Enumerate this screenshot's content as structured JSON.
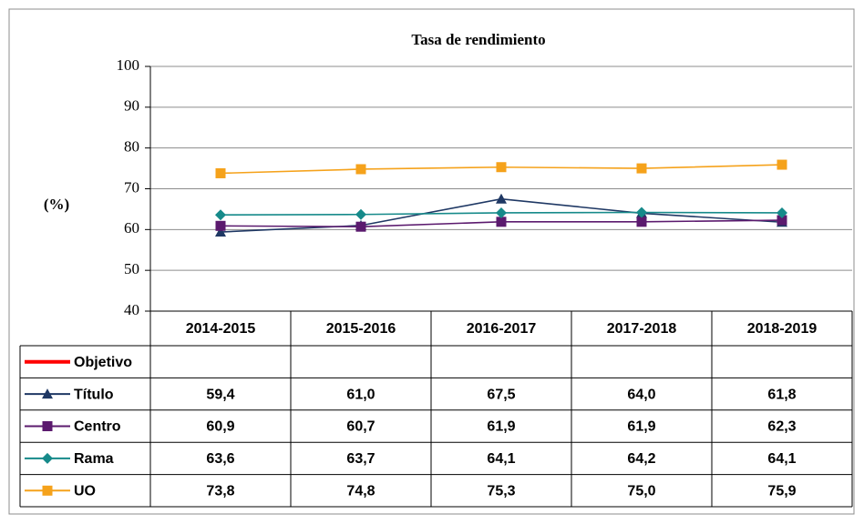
{
  "chart_data": {
    "type": "line",
    "title": "Tasa de rendimiento",
    "y_label": "(%)",
    "categories": [
      "2014-2015",
      "2015-2016",
      "2016-2017",
      "2017-2018",
      "2018-2019"
    ],
    "ylim": [
      40,
      100
    ],
    "yticks": [
      40,
      50,
      60,
      70,
      80,
      90,
      100
    ],
    "grid": true,
    "series": [
      {
        "name": "Objetivo",
        "color": "#ff0000",
        "marker": "none",
        "values": [
          null,
          null,
          null,
          null,
          null
        ]
      },
      {
        "name": "Título",
        "color": "#1f3864",
        "marker": "triangle",
        "values": [
          59.4,
          61.0,
          67.5,
          64.0,
          61.8
        ],
        "value_labels": [
          "59,4",
          "61,0",
          "67,5",
          "64,0",
          "61,8"
        ]
      },
      {
        "name": "Centro",
        "color": "#5b1a6e",
        "marker": "square",
        "values": [
          60.9,
          60.7,
          61.9,
          61.9,
          62.3
        ],
        "value_labels": [
          "60,9",
          "60,7",
          "61,9",
          "61,9",
          "62,3"
        ]
      },
      {
        "name": "Rama",
        "color": "#168a8a",
        "marker": "diamond",
        "values": [
          63.6,
          63.7,
          64.1,
          64.2,
          64.1
        ],
        "value_labels": [
          "63,6",
          "63,7",
          "64,1",
          "64,2",
          "64,1"
        ]
      },
      {
        "name": "UO",
        "color": "#f5a21b",
        "marker": "square",
        "values": [
          73.8,
          74.8,
          75.3,
          75.0,
          75.9
        ],
        "value_labels": [
          "73,8",
          "74,8",
          "75,3",
          "75,0",
          "75,9"
        ]
      }
    ]
  }
}
